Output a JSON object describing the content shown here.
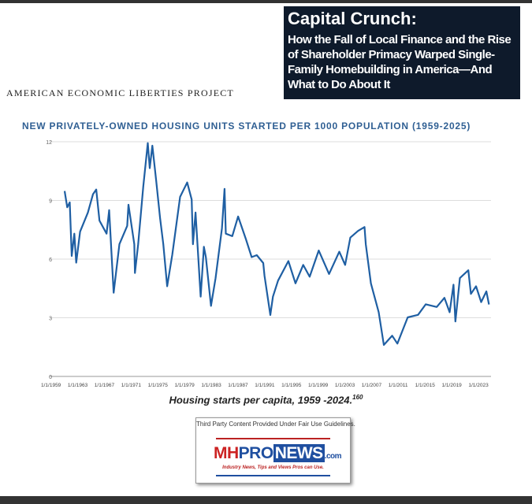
{
  "header": {
    "title": "Capital Crunch:",
    "subtitle": "How the Fall of Local Finance and the Rise of Shareholder Primacy Warped Single-Family Homebuilding in America—And What to Do About It",
    "organization": "AMERICAN ECONOMIC LIBERTIES PROJECT"
  },
  "caption": {
    "text": "Housing starts per capita, 1959 -2024.",
    "footnote": "160"
  },
  "logo": {
    "fair_use": "Third Party Content Provided Under Fair Use Guidelines.",
    "brand_mh": "MH",
    "brand_pro": "PRO",
    "brand_news": "NEWS",
    ".com": ".com",
    "dotcom": ".com",
    "tagline": "Industry News, Tips and Views Pros can Use."
  },
  "colors": {
    "line": "#1f5fa3",
    "title": "#2f5f93",
    "grid": "#dddddd",
    "navy": "#0e1a2b"
  },
  "chart_data": {
    "type": "line",
    "title": "NEW PRIVATELY-OWNED HOUSING UNITS STARTED PER 1000 POPULATION (1959-2025)",
    "xlabel": "",
    "ylabel": "",
    "xlim": [
      1959,
      2025
    ],
    "ylim": [
      0,
      12
    ],
    "yticks": [
      0,
      3,
      6,
      9,
      12
    ],
    "xtick_labels": [
      "1/1/1959",
      "1/1/1963",
      "1/1/1967",
      "1/1/1971",
      "1/1/1975",
      "1/1/1979",
      "1/1/1983",
      "1/1/1987",
      "1/1/1991",
      "1/1/1995",
      "1/1/1999",
      "1/1/2003",
      "1/1/2007",
      "1/1/2011",
      "1/1/2015",
      "1/1/2019",
      "1/1/2023"
    ],
    "grid": true,
    "series": [
      {
        "name": "Housing starts per 1000 population",
        "points": [
          [
            1959.0,
            9.48
          ],
          [
            1959.4,
            8.65
          ],
          [
            1959.8,
            8.9
          ],
          [
            1960.1,
            6.16
          ],
          [
            1960.5,
            7.3
          ],
          [
            1960.8,
            5.82
          ],
          [
            1961.4,
            7.4
          ],
          [
            1962.6,
            8.38
          ],
          [
            1963.4,
            9.32
          ],
          [
            1963.9,
            9.56
          ],
          [
            1964.4,
            7.97
          ],
          [
            1965.5,
            7.3
          ],
          [
            1965.9,
            8.5
          ],
          [
            1966.6,
            4.28
          ],
          [
            1967.5,
            6.76
          ],
          [
            1968.7,
            7.7
          ],
          [
            1968.9,
            8.78
          ],
          [
            1969.8,
            6.76
          ],
          [
            1969.9,
            5.29
          ],
          [
            1970.4,
            6.76
          ],
          [
            1971.2,
            9.72
          ],
          [
            1971.9,
            11.93
          ],
          [
            1972.2,
            10.65
          ],
          [
            1972.6,
            11.8
          ],
          [
            1973.2,
            10.0
          ],
          [
            1973.8,
            8.1
          ],
          [
            1974.3,
            6.76
          ],
          [
            1974.9,
            4.61
          ],
          [
            1975.7,
            6.23
          ],
          [
            1976.9,
            9.18
          ],
          [
            1978.0,
            9.92
          ],
          [
            1978.7,
            9.05
          ],
          [
            1978.9,
            6.76
          ],
          [
            1979.3,
            8.38
          ],
          [
            1980.1,
            4.08
          ],
          [
            1980.6,
            6.63
          ],
          [
            1980.9,
            6.1
          ],
          [
            1981.7,
            3.61
          ],
          [
            1982.4,
            5.02
          ],
          [
            1983.4,
            7.57
          ],
          [
            1983.8,
            9.59
          ],
          [
            1984.0,
            7.3
          ],
          [
            1985.0,
            7.17
          ],
          [
            1985.9,
            8.18
          ],
          [
            1987.1,
            7.03
          ],
          [
            1988.0,
            6.1
          ],
          [
            1988.8,
            6.2
          ],
          [
            1989.8,
            5.8
          ],
          [
            1990.0,
            5.15
          ],
          [
            1990.9,
            3.14
          ],
          [
            1991.3,
            4.08
          ],
          [
            1992.1,
            4.9
          ],
          [
            1993.7,
            5.9
          ],
          [
            1994.8,
            4.76
          ],
          [
            1996.0,
            5.7
          ],
          [
            1997.0,
            5.1
          ],
          [
            1998.4,
            6.44
          ],
          [
            2000.0,
            5.24
          ],
          [
            2001.6,
            6.38
          ],
          [
            2002.5,
            5.7
          ],
          [
            2003.3,
            7.1
          ],
          [
            2004.5,
            7.44
          ],
          [
            2005.5,
            7.64
          ],
          [
            2005.7,
            6.76
          ],
          [
            2006.5,
            4.76
          ],
          [
            2007.7,
            3.28
          ],
          [
            2008.5,
            1.61
          ],
          [
            2009.8,
            2.08
          ],
          [
            2010.6,
            1.68
          ],
          [
            2012.2,
            3.02
          ],
          [
            2013.8,
            3.15
          ],
          [
            2015.0,
            3.69
          ],
          [
            2016.7,
            3.55
          ],
          [
            2017.9,
            4.02
          ],
          [
            2018.7,
            3.28
          ],
          [
            2019.3,
            4.69
          ],
          [
            2019.6,
            2.81
          ],
          [
            2020.3,
            5.03
          ],
          [
            2021.6,
            5.43
          ],
          [
            2022.0,
            4.22
          ],
          [
            2022.8,
            4.61
          ],
          [
            2023.6,
            3.8
          ],
          [
            2024.4,
            4.35
          ],
          [
            2024.8,
            3.68
          ]
        ]
      }
    ]
  }
}
